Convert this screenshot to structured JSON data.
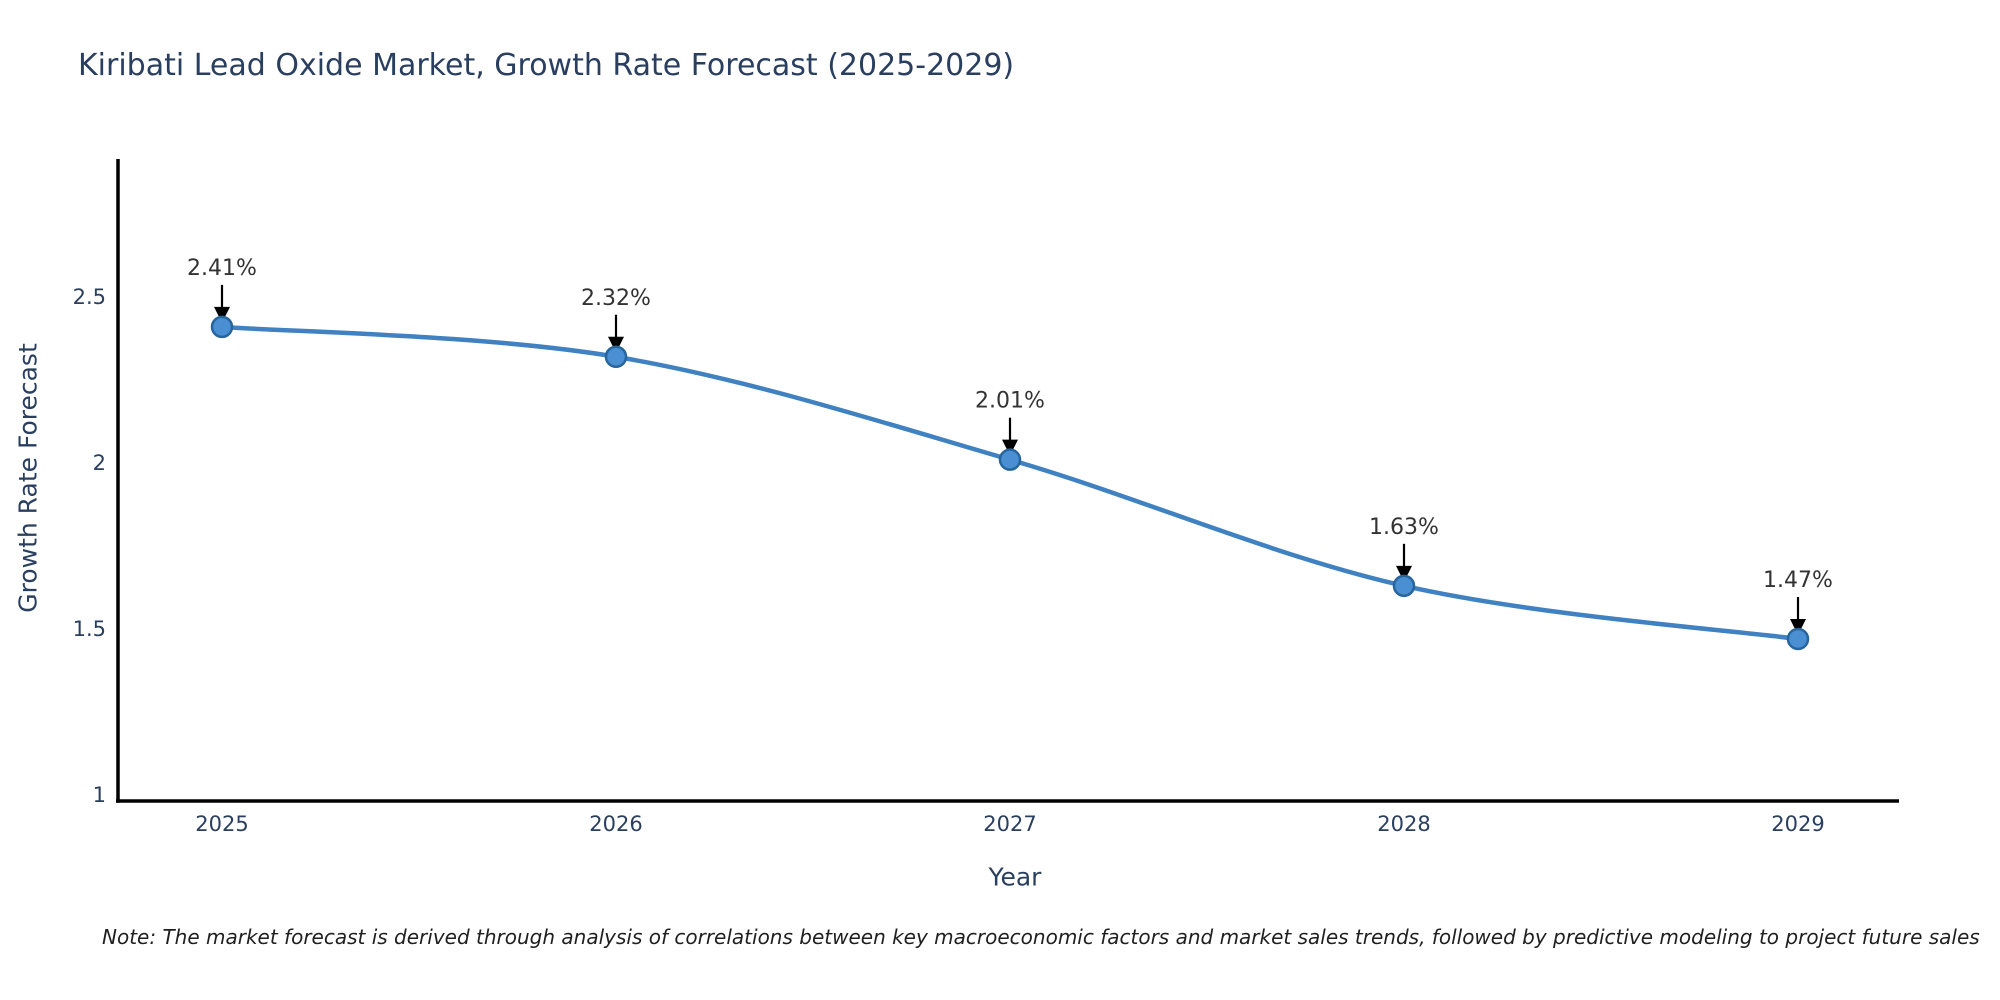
{
  "note": "Note: The market forecast is derived through analysis of correlations between key macroeconomic factors and market sales trends, followed by predictive modeling to project future sales",
  "colors": {
    "title_text": "#2a3f5f",
    "tick_text": "#2a3f5f",
    "annotation_text": "#333333",
    "axis_line": "#000000",
    "line": "#3f81c1",
    "marker_fill": "#4a8fd1",
    "marker_edge": "#27659e",
    "arrow": "#000000",
    "background": "#ffffff"
  },
  "chart_data": {
    "type": "line",
    "title": "Kiribati Lead Oxide Market, Growth Rate Forecast (2025-2029)",
    "xlabel": "Year",
    "ylabel": "Growth Rate Forecast",
    "categories": [
      "2025",
      "2026",
      "2027",
      "2028",
      "2029"
    ],
    "values": [
      2.41,
      2.32,
      2.01,
      1.63,
      1.47
    ],
    "point_labels": [
      "2.41%",
      "2.32%",
      "2.01%",
      "1.63%",
      "1.47%"
    ],
    "yticks": [
      "2.5",
      "2",
      "1.5",
      "1"
    ],
    "ytick_values": [
      2.5,
      2,
      1.5,
      1
    ],
    "ylim": [
      0.98,
      2.94
    ],
    "line_shape": "spline",
    "grid": false,
    "legend": "none",
    "annotations": "value labels with down arrows above each point"
  }
}
